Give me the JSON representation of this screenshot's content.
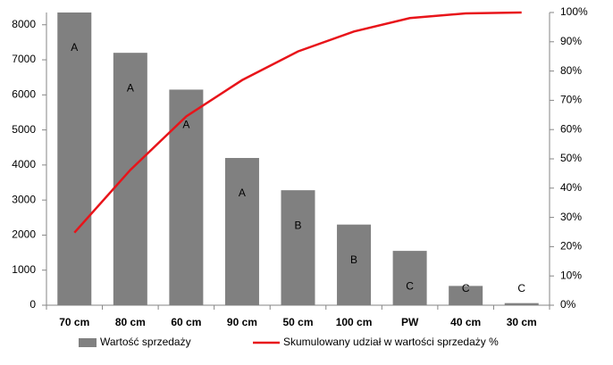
{
  "chart_data": {
    "type": "bar",
    "categories": [
      "70 cm",
      "80 cm",
      "60 cm",
      "90 cm",
      "50 cm",
      "100 cm",
      "PW",
      "40 cm",
      "30 cm"
    ],
    "series": [
      {
        "name": "Wartość sprzedaży",
        "type": "bar",
        "color": "#808080",
        "values": [
          8350,
          7200,
          6150,
          4200,
          3280,
          2300,
          1550,
          550,
          60
        ],
        "bar_labels": [
          "A",
          "A",
          "A",
          "A",
          "B",
          "B",
          "C",
          "C",
          "C"
        ]
      },
      {
        "name": "Skumulowany udział w wartości sprzedaży %",
        "type": "line",
        "axis": "y2",
        "color": "#e8141a",
        "values": [
          24.8,
          46.2,
          64.5,
          76.9,
          86.7,
          93.5,
          98.1,
          99.7,
          100
        ]
      }
    ],
    "ylim": [
      0,
      8350
    ],
    "yticks": [
      0,
      1000,
      2000,
      3000,
      4000,
      5000,
      6000,
      7000,
      8000
    ],
    "y2lim": [
      0,
      100
    ],
    "y2ticks": [
      {
        "value": 0,
        "label": "0%"
      },
      {
        "value": 10,
        "label": "10%"
      },
      {
        "value": 20,
        "label": "20%"
      },
      {
        "value": 30,
        "label": "30%"
      },
      {
        "value": 40,
        "label": "40%"
      },
      {
        "value": 50,
        "label": "50%"
      },
      {
        "value": 60,
        "label": "60%"
      },
      {
        "value": 70,
        "label": "70%"
      },
      {
        "value": 80,
        "label": "80%"
      },
      {
        "value": 90,
        "label": "90%"
      },
      {
        "value": 100,
        "label": "100%"
      }
    ],
    "grid": false,
    "legend": "bottom"
  }
}
